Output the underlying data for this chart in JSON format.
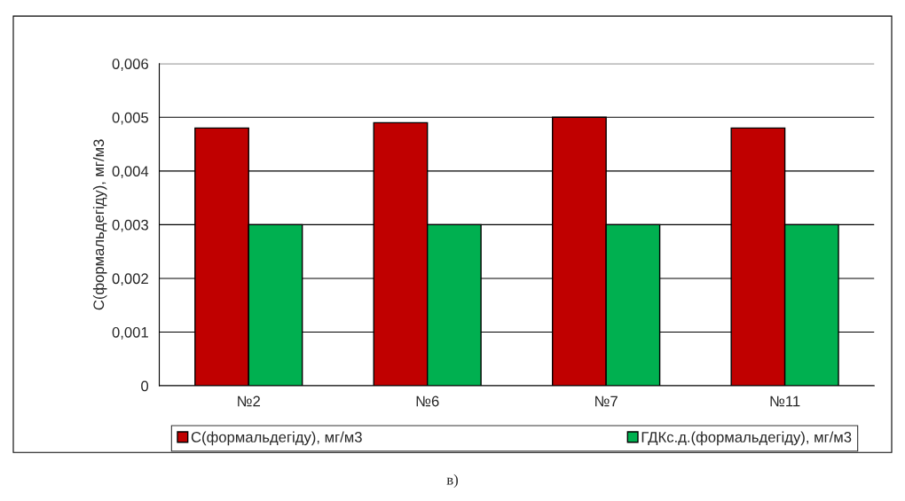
{
  "chart_data": {
    "type": "bar",
    "categories": [
      "№2",
      "№6",
      "№7",
      "№11"
    ],
    "series": [
      {
        "name": "С(формальдегіду), мг/м3",
        "color": "#c00000",
        "values": [
          0.0048,
          0.0049,
          0.005,
          0.0048
        ]
      },
      {
        "name": "ГДКс.д.(формальдегіду), мг/м3",
        "color": "#00b050",
        "values": [
          0.003,
          0.003,
          0.003,
          0.003
        ]
      }
    ],
    "ylabel": "С(формальдегіду), мг/м3",
    "ylim": [
      0,
      0.006
    ],
    "yticks": [
      0,
      {
        "value": 0.001,
        "label": "0,001"
      },
      {
        "value": 0.002,
        "label": "0,002"
      },
      {
        "value": 0.003,
        "label": "0,003"
      },
      {
        "value": 0.004,
        "label": "0,004"
      },
      {
        "value": 0.005,
        "label": "0,005"
      },
      {
        "value": 0.006,
        "label": "0,006"
      }
    ],
    "grid": "y",
    "legend": "bottom",
    "annotations": [
      "в)"
    ]
  }
}
